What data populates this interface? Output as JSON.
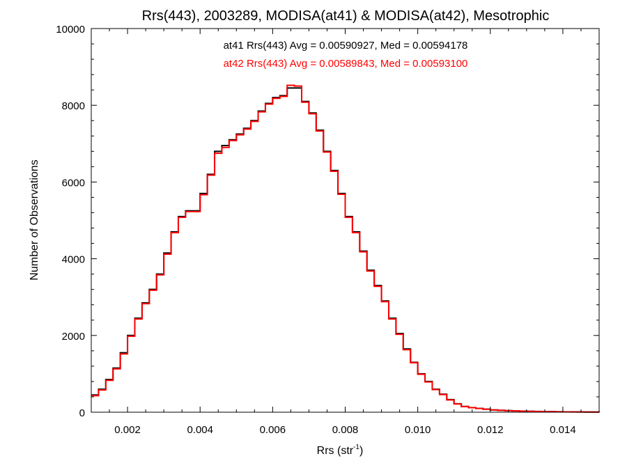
{
  "chart_data": {
    "type": "line",
    "style": "histogram-step",
    "title": "Rrs(443), 2003289, MODISA(at41) & MODISA(at42), Mesotrophic",
    "xlabel_main": "Rrs (str",
    "xlabel_sup": "-1",
    "xlabel_close": ")",
    "ylabel": "Number of Observations",
    "xlim": [
      0.001,
      0.015
    ],
    "ylim": [
      0,
      10000
    ],
    "x_ticks": [
      0.002,
      0.004,
      0.006,
      0.008,
      0.01,
      0.012,
      0.014
    ],
    "x_tick_labels": [
      "0.002",
      "0.004",
      "0.006",
      "0.008",
      "0.010",
      "0.012",
      "0.014"
    ],
    "y_ticks": [
      0,
      2000,
      4000,
      6000,
      8000,
      10000
    ],
    "y_tick_labels": [
      "0",
      "2000",
      "4000",
      "6000",
      "8000",
      "10000"
    ],
    "grid": false,
    "annotations": [
      {
        "text": "at41 Rrs(443) Avg = 0.00590927, Med = 0.00594178",
        "color": "#000000"
      },
      {
        "text": "at42 Rrs(443) Avg = 0.00589843, Med = 0.00593100",
        "color": "#ff0000"
      }
    ],
    "series": [
      {
        "name": "at41",
        "color": "#000000",
        "x": [
          0.001,
          0.0012,
          0.0014,
          0.0016,
          0.0018,
          0.002,
          0.0022,
          0.0024,
          0.0026,
          0.0028,
          0.003,
          0.0032,
          0.0034,
          0.0036,
          0.0038,
          0.004,
          0.0042,
          0.0044,
          0.0046,
          0.0048,
          0.005,
          0.0052,
          0.0054,
          0.0056,
          0.0058,
          0.006,
          0.0062,
          0.0064,
          0.0066,
          0.0068,
          0.007,
          0.0072,
          0.0074,
          0.0076,
          0.0078,
          0.008,
          0.0082,
          0.0084,
          0.0086,
          0.0088,
          0.009,
          0.0092,
          0.0094,
          0.0096,
          0.0098,
          0.01,
          0.0102,
          0.0104,
          0.0106,
          0.0108,
          0.011,
          0.0112,
          0.0114,
          0.0116,
          0.0118,
          0.012,
          0.0122,
          0.0124,
          0.0126,
          0.0128,
          0.013,
          0.0132,
          0.0134,
          0.0136,
          0.0138,
          0.014,
          0.0142,
          0.0144,
          0.0146,
          0.0148,
          0.015
        ],
        "values": [
          450,
          600,
          850,
          1150,
          1550,
          2000,
          2450,
          2850,
          3200,
          3600,
          4150,
          4700,
          5100,
          5250,
          5250,
          5700,
          6200,
          6800,
          6950,
          7100,
          7250,
          7400,
          7600,
          7850,
          8050,
          8200,
          8250,
          8450,
          8450,
          8100,
          7800,
          7350,
          6800,
          6300,
          5700,
          5100,
          4700,
          4200,
          3700,
          3300,
          2900,
          2450,
          2050,
          1650,
          1300,
          1000,
          800,
          600,
          470,
          330,
          220,
          150,
          120,
          100,
          80,
          60,
          50,
          40,
          35,
          30,
          25,
          20,
          18,
          15,
          12,
          10,
          8,
          6,
          5,
          4,
          3
        ]
      },
      {
        "name": "at42",
        "color": "#ff0000",
        "x": [
          0.001,
          0.0012,
          0.0014,
          0.0016,
          0.0018,
          0.002,
          0.0022,
          0.0024,
          0.0026,
          0.0028,
          0.003,
          0.0032,
          0.0034,
          0.0036,
          0.0038,
          0.004,
          0.0042,
          0.0044,
          0.0046,
          0.0048,
          0.005,
          0.0052,
          0.0054,
          0.0056,
          0.0058,
          0.006,
          0.0062,
          0.0064,
          0.0066,
          0.0068,
          0.007,
          0.0072,
          0.0074,
          0.0076,
          0.0078,
          0.008,
          0.0082,
          0.0084,
          0.0086,
          0.0088,
          0.009,
          0.0092,
          0.0094,
          0.0096,
          0.0098,
          0.01,
          0.0102,
          0.0104,
          0.0106,
          0.0108,
          0.011,
          0.0112,
          0.0114,
          0.0116,
          0.0118,
          0.012,
          0.0122,
          0.0124,
          0.0126,
          0.0128,
          0.013,
          0.0132,
          0.0134,
          0.0136,
          0.0138,
          0.014,
          0.0142,
          0.0144,
          0.0146,
          0.0148,
          0.015
        ],
        "values": [
          430,
          580,
          830,
          1130,
          1520,
          1980,
          2430,
          2830,
          3180,
          3580,
          4120,
          4680,
          5080,
          5230,
          5230,
          5670,
          6180,
          6750,
          6900,
          7080,
          7230,
          7380,
          7580,
          7830,
          8030,
          8180,
          8230,
          8520,
          8500,
          8080,
          7780,
          7330,
          6780,
          6280,
          5680,
          5080,
          4680,
          4180,
          3680,
          3280,
          2880,
          2430,
          2030,
          1630,
          1290,
          990,
          790,
          590,
          460,
          320,
          215,
          148,
          118,
          98,
          78,
          58,
          48,
          38,
          33,
          28,
          23,
          19,
          17,
          14,
          11,
          9,
          7,
          6,
          5,
          4,
          3
        ]
      }
    ]
  }
}
